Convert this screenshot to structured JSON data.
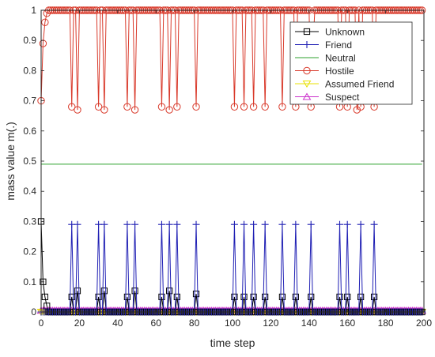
{
  "chart_data": {
    "type": "line",
    "xlabel": "time step",
    "ylabel": "mass value m(.)",
    "xlim": [
      0,
      200
    ],
    "ylim": [
      0,
      1
    ],
    "x_ticks": [
      "0",
      "20",
      "40",
      "60",
      "80",
      "100",
      "120",
      "140",
      "160",
      "180",
      "200"
    ],
    "y_ticks": [
      "0",
      "0.1",
      "0.2",
      "0.3",
      "0.4",
      "0.5",
      "0.6",
      "0.7",
      "0.8",
      "0.9",
      "1"
    ],
    "legend_position": "top-right",
    "grid": false,
    "spike_steps": [
      16,
      19,
      30,
      33,
      45,
      49,
      63,
      67,
      71,
      81,
      101,
      106,
      111,
      117,
      126,
      133,
      141,
      156,
      160,
      167,
      174
    ],
    "series": [
      {
        "name": "Unknown",
        "color": "#000000",
        "marker": "square",
        "start_values": [
          0.3,
          0.1,
          0.05,
          0.02
        ],
        "baseline": 0.0,
        "spike_values": [
          0.05,
          0.07,
          0.05,
          0.07,
          0.05,
          0.07,
          0.05,
          0.07,
          0.05,
          0.06,
          0.05,
          0.05,
          0.05,
          0.05,
          0.05,
          0.05,
          0.05,
          0.05,
          0.05,
          0.05,
          0.05
        ]
      },
      {
        "name": "Friend",
        "color": "#1f1fb4",
        "marker": "plus",
        "baseline": 0.0,
        "spike_values": [
          0.29,
          0.29,
          0.29,
          0.29,
          0.29,
          0.29,
          0.29,
          0.29,
          0.29,
          0.29,
          0.29,
          0.29,
          0.29,
          0.29,
          0.29,
          0.29,
          0.29,
          0.29,
          0.29,
          0.29,
          0.29
        ]
      },
      {
        "name": "Neutral",
        "color": "#2ca02c",
        "marker": "none",
        "value": 0.49
      },
      {
        "name": "Hostile",
        "color": "#d93a2b",
        "marker": "circle",
        "start_values": [
          0.7,
          0.89,
          0.96,
          0.99
        ],
        "baseline": 1.0,
        "spike_values": [
          0.68,
          0.67,
          0.68,
          0.67,
          0.68,
          0.67,
          0.68,
          0.67,
          0.68,
          0.68,
          0.68,
          0.68,
          0.68,
          0.68,
          0.68,
          0.68,
          0.68,
          0.68,
          0.68,
          0.68,
          0.68
        ],
        "dip_steps": [
          142,
          165
        ],
        "dip_values": [
          0.88,
          0.67
        ]
      },
      {
        "name": "Assumed Friend",
        "color": "#e8e000",
        "marker": "triangle-down",
        "baseline": 0.0
      },
      {
        "name": "Suspect",
        "color": "#cc33cc",
        "marker": "triangle-up",
        "baseline": 0.005
      }
    ]
  }
}
